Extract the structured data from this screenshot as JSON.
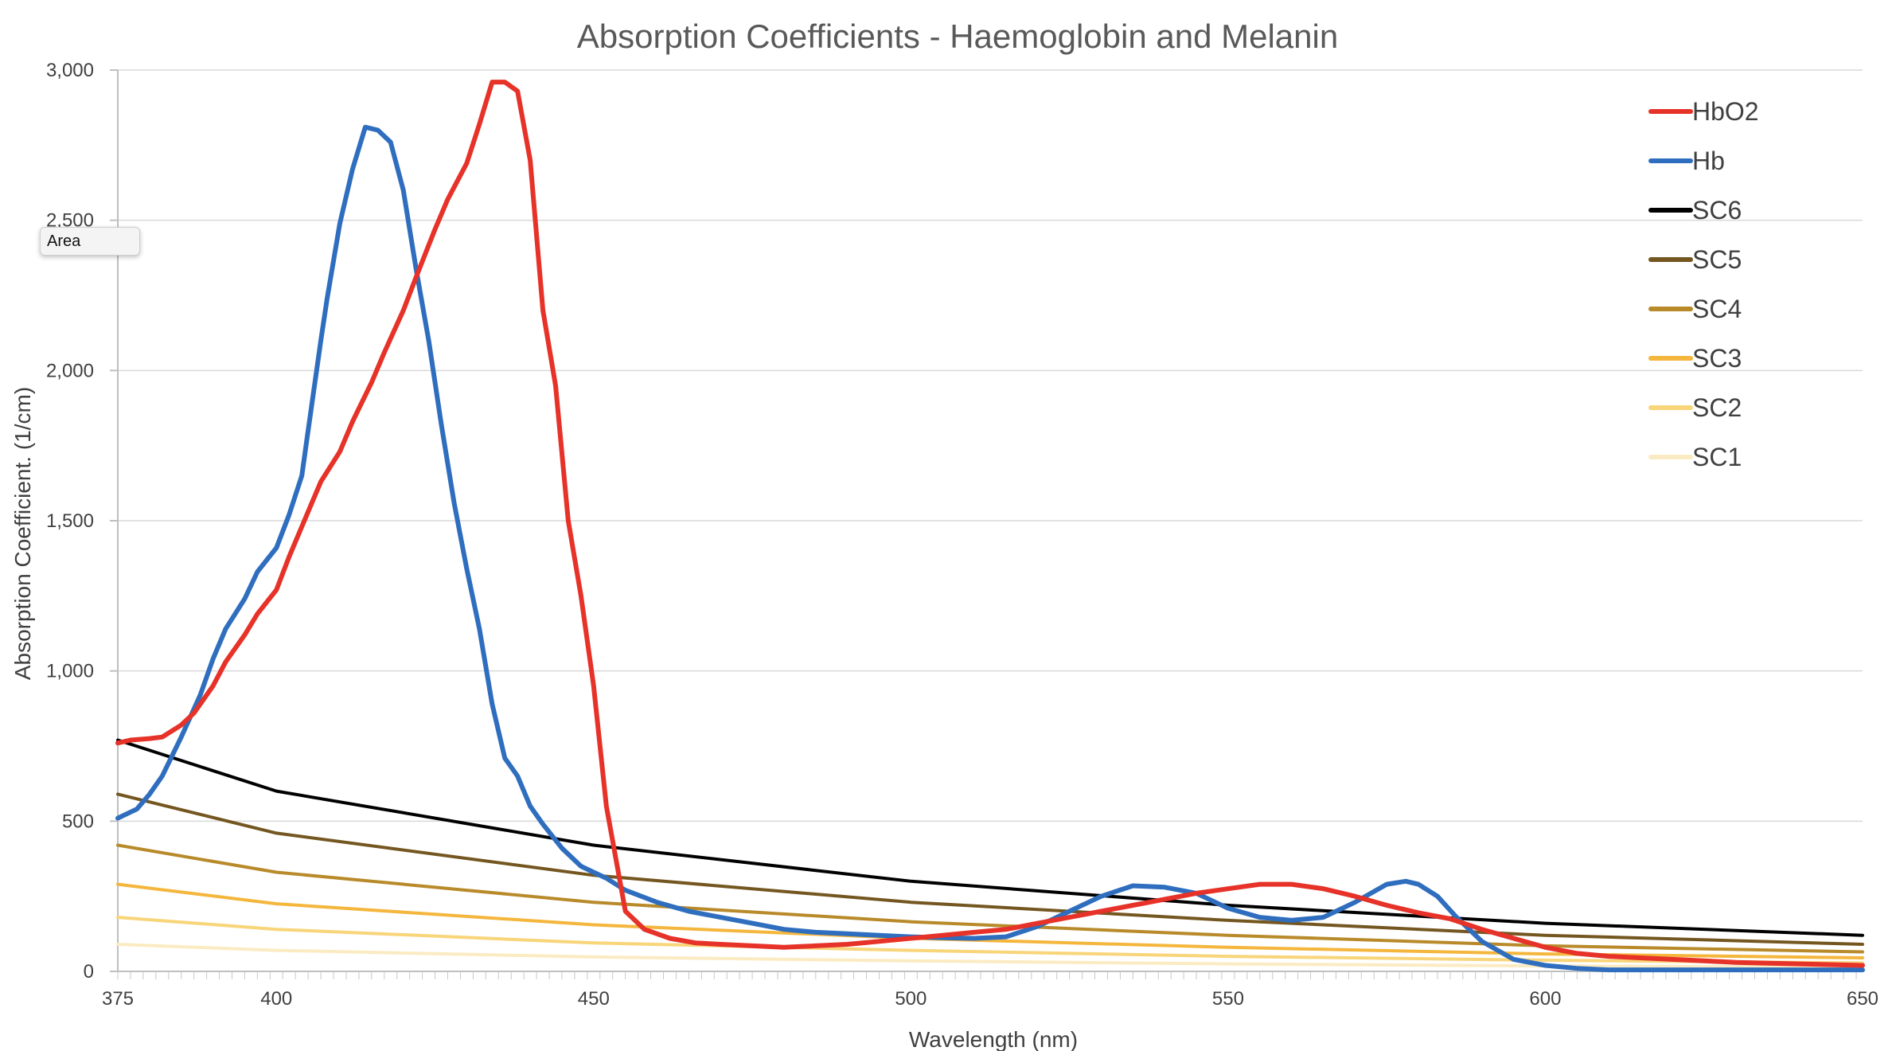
{
  "tooltip": {
    "text": "Area"
  },
  "chart_data": {
    "type": "line",
    "title": "Absorption Coefficients - Haemoglobin and Melanin",
    "xlabel": "Wavelength (nm)",
    "ylabel": "Absorption Coefficient. (1/cm)",
    "xlim": [
      375,
      650
    ],
    "ylim": [
      0,
      3000
    ],
    "x_ticks": [
      375,
      400,
      450,
      500,
      550,
      600,
      650
    ],
    "y_ticks": [
      0,
      500,
      1000,
      1500,
      2000,
      2500,
      3000
    ],
    "y_tick_labels": [
      "0",
      "500",
      "1,000",
      "1,500",
      "2,000",
      "2,500",
      "3,000"
    ],
    "legend_position": "top-right",
    "series": [
      {
        "name": "HbO2",
        "color": "#e63228",
        "x": [
          375,
          377,
          380,
          382,
          385,
          387,
          390,
          392,
          395,
          397,
          400,
          402,
          405,
          407,
          410,
          412,
          415,
          417,
          420,
          422,
          425,
          427,
          430,
          432,
          434,
          436,
          438,
          440,
          442,
          444,
          446,
          448,
          450,
          452,
          455,
          458,
          462,
          466,
          470,
          475,
          480,
          485,
          490,
          495,
          500,
          505,
          510,
          515,
          520,
          525,
          530,
          535,
          540,
          545,
          550,
          555,
          560,
          565,
          570,
          575,
          580,
          585,
          590,
          595,
          600,
          605,
          610,
          615,
          620,
          625,
          630,
          640,
          650
        ],
        "y": [
          760,
          770,
          775,
          780,
          820,
          860,
          950,
          1030,
          1120,
          1190,
          1270,
          1380,
          1530,
          1630,
          1730,
          1830,
          1960,
          2060,
          2200,
          2310,
          2470,
          2570,
          2690,
          2820,
          2960,
          2960,
          2930,
          2700,
          2200,
          1950,
          1500,
          1250,
          950,
          550,
          200,
          140,
          110,
          95,
          90,
          85,
          80,
          85,
          90,
          100,
          110,
          120,
          130,
          140,
          160,
          180,
          200,
          220,
          240,
          260,
          275,
          290,
          290,
          275,
          250,
          220,
          195,
          175,
          140,
          110,
          80,
          60,
          50,
          45,
          40,
          35,
          30,
          25,
          20
        ]
      },
      {
        "name": "Hb",
        "color": "#2f6ebe",
        "x": [
          375,
          378,
          380,
          382,
          385,
          388,
          390,
          392,
          395,
          397,
          400,
          402,
          404,
          405,
          407,
          408,
          410,
          412,
          414,
          416,
          418,
          420,
          422,
          424,
          426,
          428,
          430,
          432,
          434,
          436,
          438,
          440,
          442,
          445,
          448,
          450,
          452,
          455,
          460,
          465,
          470,
          475,
          480,
          485,
          490,
          495,
          500,
          505,
          510,
          515,
          520,
          525,
          530,
          535,
          540,
          545,
          550,
          555,
          560,
          565,
          570,
          575,
          578,
          580,
          583,
          586,
          590,
          595,
          600,
          605,
          610,
          620,
          630,
          640,
          650
        ],
        "y": [
          510,
          540,
          590,
          650,
          780,
          920,
          1040,
          1140,
          1240,
          1330,
          1410,
          1520,
          1650,
          1800,
          2100,
          2240,
          2490,
          2670,
          2810,
          2800,
          2760,
          2600,
          2340,
          2100,
          1820,
          1560,
          1340,
          1140,
          890,
          710,
          650,
          550,
          490,
          410,
          350,
          330,
          310,
          270,
          230,
          200,
          180,
          160,
          140,
          130,
          125,
          120,
          115,
          112,
          110,
          115,
          150,
          200,
          250,
          285,
          280,
          260,
          210,
          180,
          170,
          180,
          230,
          290,
          300,
          290,
          250,
          180,
          100,
          40,
          20,
          10,
          5,
          5,
          5,
          5,
          5
        ]
      },
      {
        "name": "SC6",
        "color": "#000000",
        "x": [
          375,
          400,
          450,
          500,
          550,
          600,
          650
        ],
        "y": [
          770,
          600,
          420,
          300,
          220,
          160,
          120
        ]
      },
      {
        "name": "SC5",
        "color": "#745620",
        "x": [
          375,
          400,
          450,
          500,
          550,
          600,
          650
        ],
        "y": [
          590,
          460,
          320,
          230,
          170,
          120,
          90
        ]
      },
      {
        "name": "SC4",
        "color": "#b88a2a",
        "x": [
          375,
          400,
          450,
          500,
          550,
          600,
          650
        ],
        "y": [
          420,
          330,
          230,
          165,
          120,
          85,
          65
        ]
      },
      {
        "name": "SC3",
        "color": "#f4b63c",
        "x": [
          375,
          400,
          450,
          500,
          550,
          600,
          650
        ],
        "y": [
          290,
          225,
          155,
          110,
          80,
          58,
          45
        ]
      },
      {
        "name": "SC2",
        "color": "#f9d57a",
        "x": [
          375,
          400,
          450,
          500,
          550,
          600,
          650
        ],
        "y": [
          180,
          140,
          95,
          70,
          50,
          37,
          28
        ]
      },
      {
        "name": "SC1",
        "color": "#fbebc2",
        "x": [
          375,
          400,
          450,
          500,
          550,
          600,
          650
        ],
        "y": [
          90,
          70,
          48,
          35,
          25,
          18,
          14
        ]
      }
    ]
  }
}
